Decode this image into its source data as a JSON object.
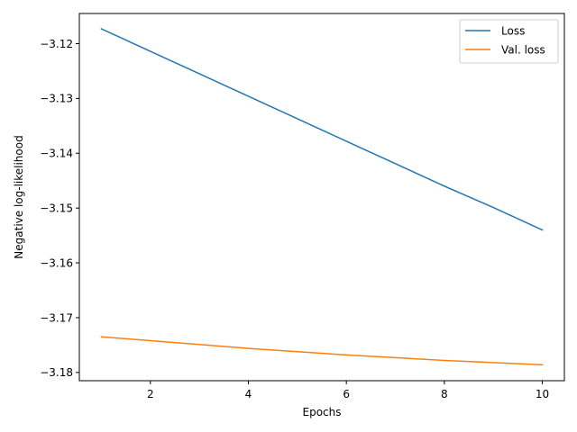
{
  "chart_data": {
    "type": "line",
    "xlabel": "Epochs",
    "ylabel": "Negative log-likelihood",
    "xlim": [
      0.55,
      10.45
    ],
    "ylim": [
      -3.1815,
      -3.1145
    ],
    "xticks": [
      2,
      4,
      6,
      8,
      10
    ],
    "xtick_labels": [
      "2",
      "4",
      "6",
      "8",
      "10"
    ],
    "yticks": [
      -3.12,
      -3.13,
      -3.14,
      -3.15,
      -3.16,
      -3.17,
      -3.18
    ],
    "ytick_labels": [
      "−3.12",
      "−3.13",
      "−3.14",
      "−3.15",
      "−3.16",
      "−3.17",
      "−3.18"
    ],
    "grid": false,
    "legend_position": "top-right",
    "x": [
      1,
      2,
      3,
      4,
      5,
      6,
      7,
      8,
      9,
      10
    ],
    "series": [
      {
        "name": "Loss",
        "color": "#1f77b4",
        "values": [
          -3.1173,
          -3.1214,
          -3.1255,
          -3.1296,
          -3.1337,
          -3.1378,
          -3.1419,
          -3.146,
          -3.1499,
          -3.154
        ]
      },
      {
        "name": "Val. loss",
        "color": "#ff7f0e",
        "values": [
          -3.1735,
          -3.1742,
          -3.1749,
          -3.1756,
          -3.1762,
          -3.1768,
          -3.1773,
          -3.1778,
          -3.1782,
          -3.1786
        ]
      }
    ]
  }
}
